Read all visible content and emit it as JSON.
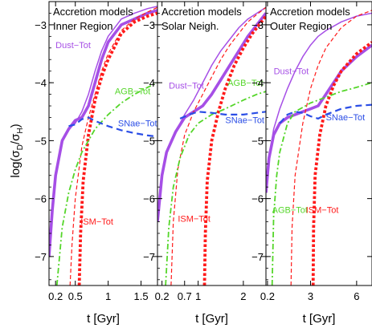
{
  "figure": {
    "ylabel_main": "log(σ",
    "ylabel_sub1": "D",
    "ylabel_mid": "/σ",
    "ylabel_sub2": "H",
    "ylabel_end": ")"
  },
  "colors": {
    "total": "#a64fe6",
    "agb": "#55d62a",
    "sne": "#2b4ee6",
    "ism": "#ff1a1a",
    "axis": "#000000"
  },
  "chart_data": [
    {
      "type": "line",
      "title": "Accretion models",
      "subtitle": "Inner Region",
      "xlabel": "t [Gyr]",
      "ylabel": "log(σD/σH)",
      "xlim": [
        0.1,
        1.75
      ],
      "ylim": [
        -7.5,
        -2.6
      ],
      "xticks": [
        0.2,
        0.5,
        1,
        1.5
      ],
      "xtick_labels": [
        "0.2",
        "0.5",
        "1",
        "1.5"
      ],
      "yticks": [
        -7,
        -6,
        -5,
        -4,
        -3
      ],
      "ytick_labels": [
        "−7",
        "−6",
        "−5",
        "−4",
        "−3"
      ],
      "annotations": [
        {
          "text": "Dust−Tot",
          "x": 0.2,
          "y": -3.4,
          "color": "#a64fe6"
        },
        {
          "text": "AGB−Tot",
          "x": 1.1,
          "y": -4.2,
          "color": "#55d62a"
        },
        {
          "text": "SNae−Tot",
          "x": 1.15,
          "y": -4.75,
          "color": "#2b4ee6"
        },
        {
          "text": "ISM−Tot",
          "x": 0.58,
          "y": -6.45,
          "color": "#ff1a1a"
        }
      ],
      "series": [
        {
          "name": "Dust−Tot",
          "style": "thick",
          "x": [
            0.1,
            0.15,
            0.2,
            0.3,
            0.4,
            0.5,
            0.6,
            0.7,
            0.8,
            0.9,
            1.0,
            1.2,
            1.4,
            1.6,
            1.75
          ],
          "y": [
            -7.0,
            -6.2,
            -5.6,
            -5.0,
            -4.8,
            -4.65,
            -4.6,
            -4.4,
            -4.0,
            -3.6,
            -3.3,
            -3.0,
            -2.9,
            -2.8,
            -2.75
          ]
        },
        {
          "name": "Dust−Tot",
          "style": "thin",
          "x": [
            0.1,
            0.15,
            0.2,
            0.3,
            0.4,
            0.5,
            0.6,
            0.7,
            0.8,
            0.9,
            1.0,
            1.2,
            1.4,
            1.6,
            1.75
          ],
          "y": [
            -7.0,
            -6.2,
            -5.6,
            -5.0,
            -4.8,
            -4.7,
            -4.5,
            -4.2,
            -3.8,
            -3.45,
            -3.2,
            -2.9,
            -2.8,
            -2.72,
            -2.68
          ]
        },
        {
          "name": "ISM−Tot",
          "style": "thin-dash",
          "x": [
            0.42,
            0.45,
            0.5,
            0.6,
            0.7,
            0.8,
            0.9,
            1.0,
            1.2,
            1.4,
            1.6,
            1.75
          ],
          "y": [
            -7.5,
            -6.8,
            -6.0,
            -5.1,
            -4.6,
            -4.2,
            -3.8,
            -3.5,
            -3.1,
            -2.9,
            -2.78,
            -2.7
          ]
        },
        {
          "name": "ISM−Tot",
          "style": "thick-dot",
          "x": [
            0.56,
            0.58,
            0.62,
            0.7,
            0.8,
            0.9,
            1.0,
            1.2,
            1.4,
            1.6,
            1.75
          ],
          "y": [
            -7.5,
            -6.6,
            -5.7,
            -4.9,
            -4.3,
            -3.9,
            -3.6,
            -3.15,
            -2.95,
            -2.85,
            -2.8
          ]
        },
        {
          "name": "AGB−Tot",
          "style": "dashdot",
          "x": [
            0.22,
            0.3,
            0.4,
            0.5,
            0.6,
            0.8,
            1.0,
            1.2,
            1.4,
            1.6,
            1.75
          ],
          "y": [
            -7.5,
            -6.5,
            -5.9,
            -5.5,
            -5.2,
            -4.8,
            -4.55,
            -4.35,
            -4.2,
            -4.08,
            -4.0
          ]
        },
        {
          "name": "SNae−Tot",
          "style": "dash",
          "x": [
            0.4,
            0.5,
            0.6,
            0.7,
            0.8,
            1.0,
            1.2,
            1.4,
            1.6,
            1.75
          ],
          "y": [
            -4.75,
            -4.72,
            -4.63,
            -4.6,
            -4.66,
            -4.75,
            -4.82,
            -4.87,
            -4.91,
            -4.93
          ]
        }
      ]
    },
    {
      "type": "line",
      "title": "Accretion models",
      "subtitle": "Solar Neigh.",
      "xlabel": "t [Gyr]",
      "ylabel": "",
      "xlim": [
        0.1,
        2.5
      ],
      "ylim": [
        -7.5,
        -2.6
      ],
      "xticks": [
        0.2,
        0.7,
        1,
        2
      ],
      "xtick_labels": [
        "0.2",
        "0.7",
        "1",
        "2"
      ],
      "yticks": [
        -7,
        -6,
        -5,
        -4,
        -3
      ],
      "ytick_labels": [
        "−7",
        "−6",
        "−5",
        "−4",
        "−3"
      ],
      "annotations": [
        {
          "text": "Dust−Tot",
          "x": 0.35,
          "y": -4.1,
          "color": "#a64fe6"
        },
        {
          "text": "AGB−Tot",
          "x": 1.65,
          "y": -4.05,
          "color": "#55d62a"
        },
        {
          "text": "SNae−Tot",
          "x": 1.6,
          "y": -4.7,
          "color": "#2b4ee6"
        },
        {
          "text": "ISM−Tot",
          "x": 0.55,
          "y": -6.4,
          "color": "#ff1a1a"
        }
      ],
      "series": [
        {
          "name": "Dust−Tot",
          "style": "thick",
          "x": [
            0.1,
            0.2,
            0.3,
            0.5,
            0.7,
            0.9,
            1.1,
            1.3,
            1.5,
            1.7,
            1.9,
            2.1,
            2.3,
            2.5
          ],
          "y": [
            -6.4,
            -5.6,
            -5.2,
            -4.85,
            -4.6,
            -4.5,
            -4.4,
            -4.2,
            -3.95,
            -3.7,
            -3.45,
            -3.2,
            -3.0,
            -2.8
          ]
        },
        {
          "name": "Dust−Tot",
          "style": "thin",
          "x": [
            0.1,
            0.2,
            0.3,
            0.5,
            0.7,
            0.9,
            1.1,
            1.3,
            1.5,
            1.7,
            1.9,
            2.1,
            2.3,
            2.5
          ],
          "y": [
            -6.4,
            -5.6,
            -5.2,
            -4.85,
            -4.55,
            -4.3,
            -4.0,
            -3.7,
            -3.45,
            -3.25,
            -3.05,
            -2.9,
            -2.8,
            -2.7
          ]
        },
        {
          "name": "ISM−Tot",
          "style": "thin-dash",
          "x": [
            0.4,
            0.45,
            0.55,
            0.7,
            0.9,
            1.1,
            1.3,
            1.5,
            1.7,
            1.9,
            2.1,
            2.3,
            2.5
          ],
          "y": [
            -7.5,
            -6.4,
            -5.5,
            -4.9,
            -4.5,
            -4.2,
            -3.9,
            -3.6,
            -3.35,
            -3.15,
            -2.95,
            -2.82,
            -2.7
          ]
        },
        {
          "name": "ISM−Tot",
          "style": "thick-dot",
          "x": [
            1.14,
            1.16,
            1.2,
            1.3,
            1.45,
            1.6,
            1.8,
            2.0,
            2.2,
            2.4,
            2.5
          ],
          "y": [
            -7.5,
            -6.6,
            -5.7,
            -5.0,
            -4.5,
            -4.1,
            -3.7,
            -3.4,
            -3.15,
            -2.95,
            -2.85
          ]
        },
        {
          "name": "AGB−Tot",
          "style": "dashdot",
          "x": [
            0.28,
            0.35,
            0.45,
            0.6,
            0.8,
            1.0,
            1.3,
            1.6,
            2.0,
            2.3,
            2.5
          ],
          "y": [
            -7.5,
            -6.5,
            -5.8,
            -5.3,
            -4.9,
            -4.7,
            -4.55,
            -4.45,
            -4.3,
            -4.2,
            -4.15
          ]
        },
        {
          "name": "SNae−Tot",
          "style": "dash",
          "x": [
            0.6,
            0.8,
            1.0,
            1.3,
            1.6,
            2.0,
            2.3,
            2.5
          ],
          "y": [
            -4.62,
            -4.55,
            -4.5,
            -4.52,
            -4.55,
            -4.55,
            -4.52,
            -4.5
          ]
        }
      ]
    },
    {
      "type": "line",
      "title": "Accretion models",
      "subtitle": "Outer Region",
      "xlabel": "t [Gyr]",
      "ylabel": "",
      "xlim": [
        0.1,
        7.0
      ],
      "ylim": [
        -7.5,
        -2.6
      ],
      "xticks": [
        0.2,
        3,
        6
      ],
      "xtick_labels": [
        "0.2",
        "3",
        "6"
      ],
      "yticks": [
        -7,
        -6,
        -5,
        -4,
        -3
      ],
      "ytick_labels": [
        "−7",
        "−6",
        "−5",
        "−4",
        "−3"
      ],
      "annotations": [
        {
          "text": "Dust−Tot",
          "x": 0.6,
          "y": -3.85,
          "color": "#a64fe6"
        },
        {
          "text": "SNae−Tot",
          "x": 4.0,
          "y": -4.65,
          "color": "#2b4ee6"
        },
        {
          "text": "AGB−Tot",
          "x": 0.5,
          "y": -6.25,
          "color": "#55d62a"
        },
        {
          "text": "ISM−Tot",
          "x": 2.7,
          "y": -6.25,
          "color": "#ff1a1a"
        }
      ],
      "series": [
        {
          "name": "Dust−Tot",
          "style": "thick",
          "x": [
            0.1,
            0.3,
            0.6,
            1.0,
            1.5,
            2.0,
            2.5,
            3.0,
            3.5,
            4.0,
            5.0,
            6.0,
            7.0
          ],
          "y": [
            -5.9,
            -5.3,
            -4.9,
            -4.7,
            -4.6,
            -4.55,
            -4.5,
            -4.45,
            -4.4,
            -4.2,
            -3.8,
            -3.55,
            -3.35
          ]
        },
        {
          "name": "Dust−Tot",
          "style": "thin",
          "x": [
            0.1,
            0.3,
            0.6,
            1.0,
            1.5,
            2.0,
            2.5,
            3.0,
            3.5,
            4.0,
            5.0,
            6.0,
            7.0
          ],
          "y": [
            -5.9,
            -5.3,
            -4.8,
            -4.45,
            -4.1,
            -3.8,
            -3.55,
            -3.35,
            -3.2,
            -3.1,
            -2.95,
            -2.85,
            -2.8
          ]
        },
        {
          "name": "ISM−Tot",
          "style": "thin-dash",
          "x": [
            1.73,
            1.8,
            2.0,
            2.5,
            3.0,
            3.5,
            4.0,
            5.0,
            6.0,
            7.0
          ],
          "y": [
            -7.5,
            -6.5,
            -5.6,
            -4.7,
            -4.1,
            -3.7,
            -3.4,
            -3.05,
            -2.85,
            -2.75
          ]
        },
        {
          "name": "ISM−Tot",
          "style": "thick-dot",
          "x": [
            3.17,
            3.2,
            3.3,
            3.6,
            4.0,
            4.5,
            5.0,
            6.0,
            7.0
          ],
          "y": [
            -7.5,
            -6.5,
            -5.6,
            -4.9,
            -4.4,
            -4.05,
            -3.8,
            -3.5,
            -3.3
          ]
        },
        {
          "name": "AGB−Tot",
          "style": "dashdot",
          "x": [
            0.5,
            0.6,
            0.8,
            1.0,
            1.5,
            2.0,
            3.0,
            4.0,
            5.0,
            6.0,
            7.0
          ],
          "y": [
            -7.5,
            -6.3,
            -5.6,
            -5.2,
            -4.7,
            -4.5,
            -4.35,
            -4.25,
            -4.15,
            -4.08,
            -4.0
          ]
        },
        {
          "name": "SNae−Tot",
          "style": "dash",
          "x": [
            1.0,
            1.5,
            2.0,
            2.5,
            3.0,
            3.5,
            4.0,
            4.5,
            5.0,
            6.0,
            7.0
          ],
          "y": [
            -4.7,
            -4.55,
            -4.5,
            -4.52,
            -4.58,
            -4.62,
            -4.55,
            -4.5,
            -4.45,
            -4.4,
            -4.38
          ]
        }
      ]
    }
  ]
}
